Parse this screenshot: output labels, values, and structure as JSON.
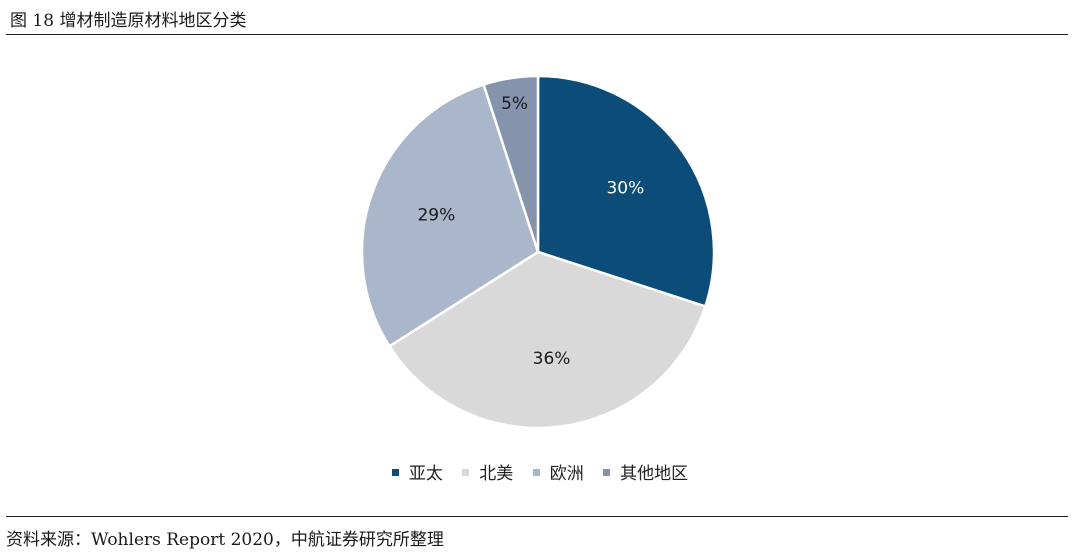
{
  "header": {
    "title": "图 18 增材制造原材料地区分类"
  },
  "footer": {
    "source": "资料来源：Wohlers Report 2020，中航证券研究所整理"
  },
  "chart_data": {
    "type": "pie",
    "categories": [
      "亚太",
      "北美",
      "欧洲",
      "其他地区"
    ],
    "values": [
      30,
      36,
      29,
      5
    ],
    "data_labels": [
      "30%",
      "36%",
      "29%",
      "5%"
    ],
    "colors": [
      "#0b4d78",
      "#d9d9d9",
      "#aab6c9",
      "#8593ad"
    ],
    "label_colors": [
      "#ffffff",
      "#1a1a1a",
      "#1a1a1a",
      "#1a1a1a"
    ],
    "start_angle_deg": 0,
    "direction": "clockwise",
    "legend_position": "bottom"
  }
}
